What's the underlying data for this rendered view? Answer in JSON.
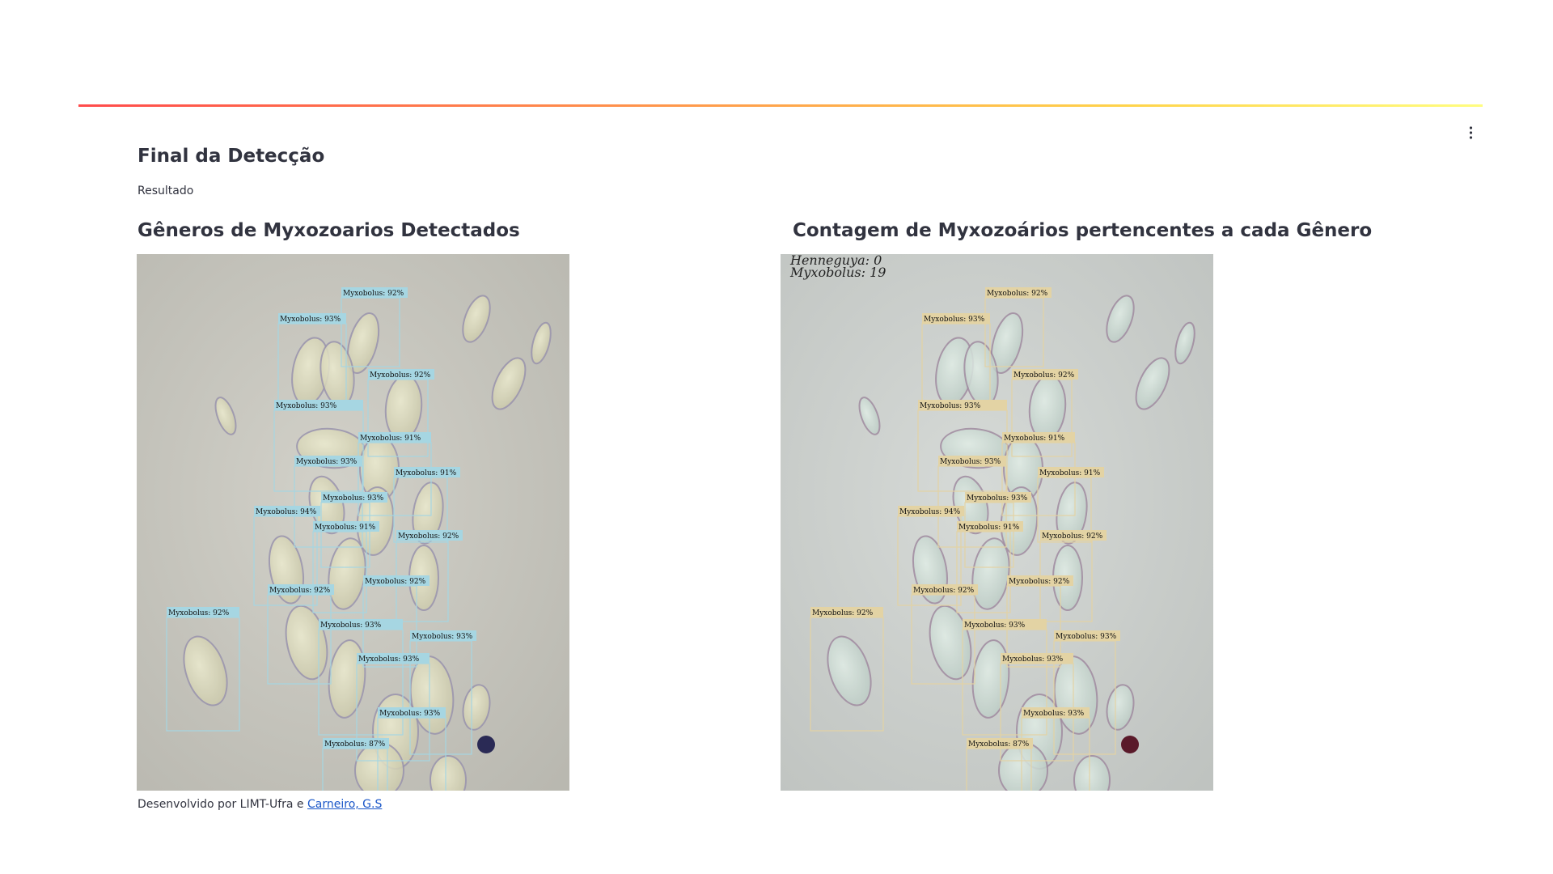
{
  "page": {
    "title": "Final da Detecção",
    "subtitle": "Resultado",
    "left_column": {
      "title": "Gêneros de Myxozoarios Detectados"
    },
    "right_column": {
      "title": "Contagem de Myxozoários pertencentes a cada Gênero",
      "counts": [
        "Henneguya: 0",
        "Myxobolus: 19"
      ]
    },
    "footer": {
      "text": "Desenvolvido por LIMT-Ufra e ",
      "link_label": "Carneiro, G.S"
    }
  },
  "detections": [
    {
      "label": "Myxobolus: 92%"
    },
    {
      "label": "Myxobolus: 93%"
    },
    {
      "label": "Myxobolus: 92%"
    },
    {
      "label": "Myxobolus: 93%"
    },
    {
      "label": "Myxobolus: 91%"
    },
    {
      "label": "Myxobolus: 93%"
    },
    {
      "label": "Myxobolus: 91%"
    },
    {
      "label": "Myxobolus: 93%"
    },
    {
      "label": "Myxobolus: 94%"
    },
    {
      "label": "Myxobolus: 91%"
    },
    {
      "label": "Myxobolus: 92%"
    },
    {
      "label": "Myxobolus: 92%"
    },
    {
      "label": "Myxobolus: 92%"
    },
    {
      "label": "Myxobolus: 92%"
    },
    {
      "label": "Myxobolus: 93%"
    },
    {
      "label": "Myxobolus: 93%"
    },
    {
      "label": "Myxobolus: 93%"
    },
    {
      "label": "Myxobolus: 93%"
    },
    {
      "label": "Myxobolus: 87%"
    }
  ],
  "colors": {
    "left_box": "#a6d6e2",
    "right_box": "#e3d3a4",
    "accent_start": "#ff4b4b",
    "accent_end": "#fffd80",
    "link": "#1a56c8"
  }
}
